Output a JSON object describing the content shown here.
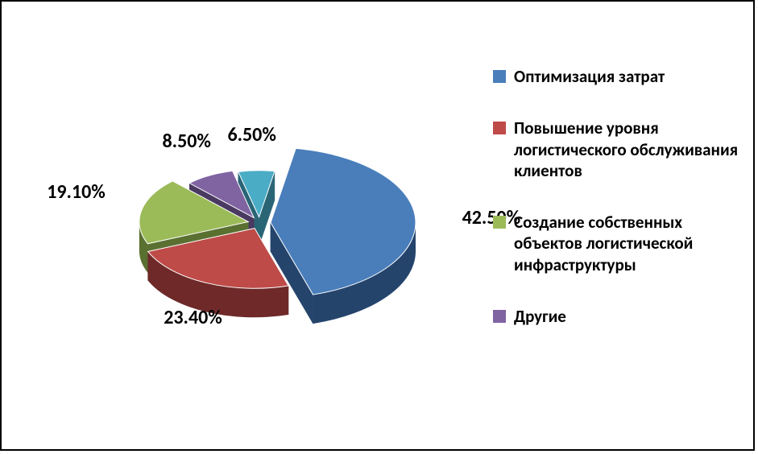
{
  "chart": {
    "type": "pie-3d-exploded",
    "background_color": "#ffffff",
    "border_color": "#000000",
    "slices": [
      {
        "label": "Оптимизация затрат",
        "value": 42.5,
        "display": "42.50%",
        "color_top": "#4a7ebb",
        "color_side": "#24446c",
        "swatch": "#4a7ebb"
      },
      {
        "label": "Повышение уровня логистического обслуживания клиентов",
        "value": 23.4,
        "display": "23.40%",
        "color_top": "#be4b48",
        "color_side": "#6e2928",
        "swatch": "#be4b48"
      },
      {
        "label": "Создание собственных объектов логистической инфраструктуры",
        "value": 19.1,
        "display": "19.10%",
        "color_top": "#9bbb59",
        "color_side": "#5a7031",
        "swatch": "#9bbb59"
      },
      {
        "label": "Другие",
        "value": 8.5,
        "display": "8.50%",
        "color_top": "#8064a2",
        "color_side": "#4a3960",
        "swatch": "#8064a2"
      },
      {
        "label": "",
        "value": 6.5,
        "display": "6.50%",
        "color_top": "#4bacc6",
        "color_side": "#2a6576",
        "swatch": "#4bacc6"
      }
    ],
    "label_fontsize": 24,
    "label_fontweight": "bold",
    "label_color": "#000000",
    "legend_fontsize": 21,
    "legend_fontweight": "bold",
    "legend_bullet_size": 16,
    "explode_gap": 14,
    "depth": 36,
    "tilt_ratio": 0.52,
    "radii_by_value": true
  }
}
